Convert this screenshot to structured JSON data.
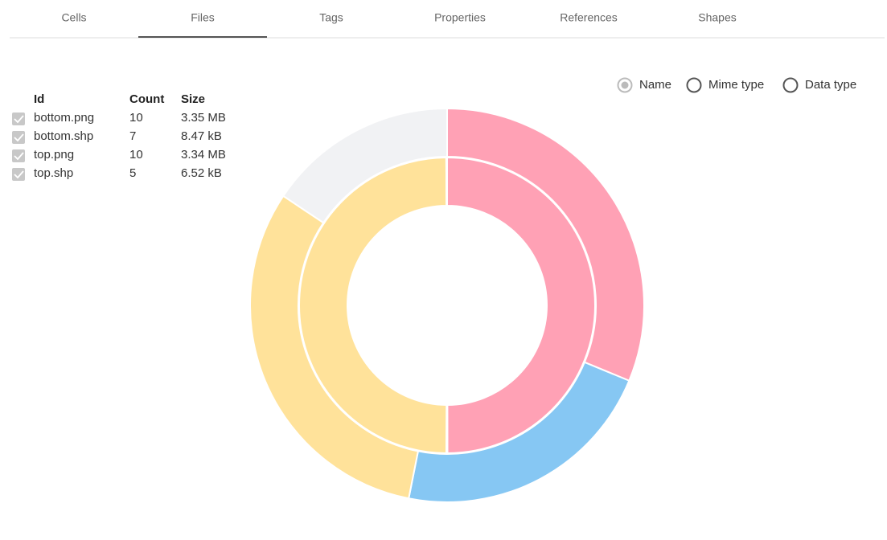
{
  "tabs": {
    "items": [
      "Cells",
      "Files",
      "Tags",
      "Properties",
      "References",
      "Shapes"
    ],
    "active": 1
  },
  "group_by": {
    "options": [
      "Name",
      "Mime type",
      "Data type"
    ],
    "selected": 0
  },
  "table": {
    "columns": [
      "Id",
      "Count",
      "Size"
    ],
    "rows": [
      [
        "bottom.png",
        10,
        "3.35 MB"
      ],
      [
        "bottom.shp",
        7,
        "8.47 kB"
      ],
      [
        "top.png",
        10,
        "3.34 MB"
      ],
      [
        "top.shp",
        5,
        "6.52 kB"
      ]
    ]
  },
  "chart_data": {
    "type": "nested-donut",
    "colors": [
      "#ffa1b5",
      "#86c7f3",
      "#ffe29a",
      "#f1f2f4"
    ],
    "series": [
      {
        "values": [
          3350000,
          8470,
          3340000,
          6520
        ]
      },
      {
        "values": [
          10,
          7,
          10,
          5
        ]
      }
    ]
  }
}
